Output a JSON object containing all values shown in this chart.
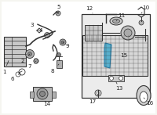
{
  "background_color": "#f5f5f0",
  "fig_width": 2.0,
  "fig_height": 1.47,
  "dpi": 100,
  "highlight_color": "#4aaccc",
  "part_color": "#b8b8b8",
  "line_color": "#666666",
  "dark_color": "#333333",
  "label_color": "#222222",
  "label_fontsize": 5.2
}
